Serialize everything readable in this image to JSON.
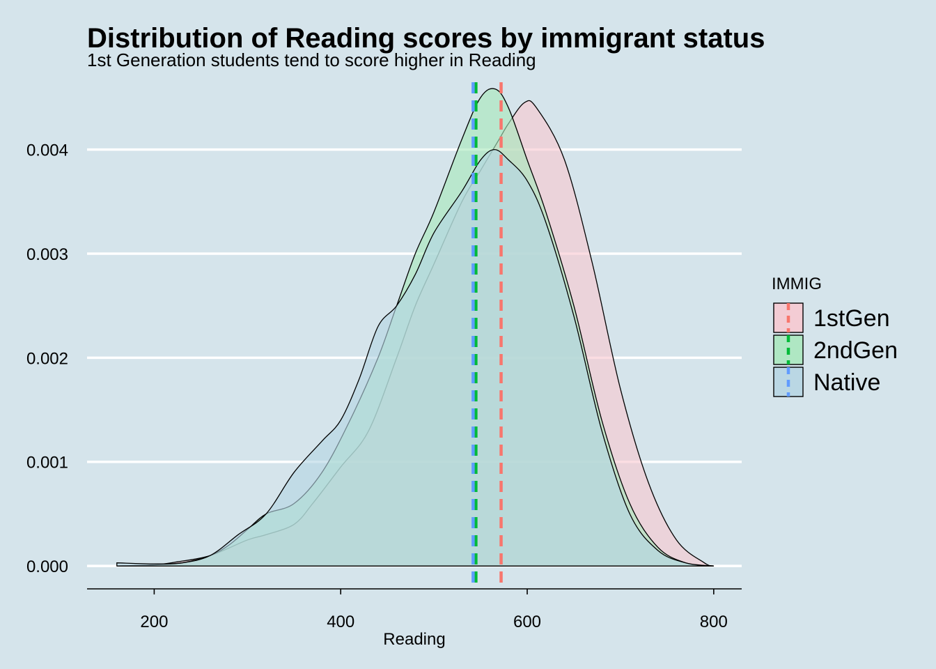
{
  "chart_data": {
    "type": "area",
    "title": "Distribution of Reading scores by immigrant status",
    "subtitle": "1st Generation students tend to score higher in Reading",
    "xlabel": "Reading",
    "ylabel": "",
    "xlim": [
      128,
      830
    ],
    "ylim": [
      -0.00022,
      0.0047
    ],
    "x_ticks": [
      200,
      400,
      600,
      800
    ],
    "x_tick_labels": [
      "200",
      "400",
      "600",
      "800"
    ],
    "y_ticks": [
      0.0,
      0.001,
      0.002,
      0.003,
      0.004
    ],
    "y_tick_labels": [
      "0.000",
      "0.001",
      "0.002",
      "0.003",
      "0.004"
    ],
    "grid": "horizontal",
    "legend": {
      "title": "IMMIG",
      "position": "right",
      "entries": [
        "1stGen",
        "2ndGen",
        "Native"
      ]
    },
    "series": [
      {
        "name": "1stGen",
        "fill": "#f8c8d0",
        "line_color": "#f8766d",
        "mean": 572,
        "x": [
          160,
          200,
          225,
          260,
          300,
          320,
          350,
          370,
          400,
          430,
          460,
          480,
          500,
          530,
          550,
          570,
          580,
          597,
          610,
          640,
          670,
          700,
          730,
          760,
          790,
          800
        ],
        "y": [
          0.0,
          1e-05,
          4e-05,
          0.0001,
          0.00025,
          0.0003,
          0.0004,
          0.0006,
          0.00095,
          0.0013,
          0.002,
          0.0025,
          0.0029,
          0.0035,
          0.0038,
          0.0041,
          0.00425,
          0.00445,
          0.0044,
          0.0039,
          0.0029,
          0.0017,
          0.0008,
          0.00025,
          3e-05,
          0.0
        ]
      },
      {
        "name": "2ndGen",
        "fill": "#a8e8bc",
        "line_color": "#00ba38",
        "mean": 545,
        "x": [
          160,
          200,
          230,
          260,
          280,
          300,
          320,
          350,
          380,
          410,
          440,
          460,
          480,
          500,
          530,
          550,
          566,
          580,
          600,
          620,
          650,
          680,
          710,
          740,
          770,
          800
        ],
        "y": [
          0.0,
          1e-05,
          3e-05,
          0.0001,
          0.0002,
          0.00035,
          0.0005,
          0.0006,
          0.0009,
          0.0014,
          0.002,
          0.0025,
          0.003,
          0.0034,
          0.0041,
          0.0045,
          0.00458,
          0.0044,
          0.0039,
          0.0034,
          0.0025,
          0.0014,
          0.0006,
          0.00018,
          3e-05,
          0.0
        ]
      },
      {
        "name": "Native",
        "fill": "#b5d5e3",
        "line_color": "#619cff",
        "mean": 542,
        "x": [
          160,
          200,
          230,
          260,
          290,
          320,
          350,
          380,
          400,
          420,
          440,
          460,
          480,
          500,
          530,
          550,
          565,
          580,
          600,
          620,
          650,
          680,
          710,
          740,
          770,
          800
        ],
        "y": [
          3e-05,
          2e-05,
          3e-05,
          0.0001,
          0.0003,
          0.0005,
          0.0009,
          0.0012,
          0.0014,
          0.0018,
          0.0023,
          0.0025,
          0.0028,
          0.0032,
          0.0036,
          0.0039,
          0.004,
          0.0039,
          0.0037,
          0.0033,
          0.0024,
          0.0013,
          0.0005,
          0.00015,
          3e-05,
          0.0
        ]
      }
    ]
  }
}
